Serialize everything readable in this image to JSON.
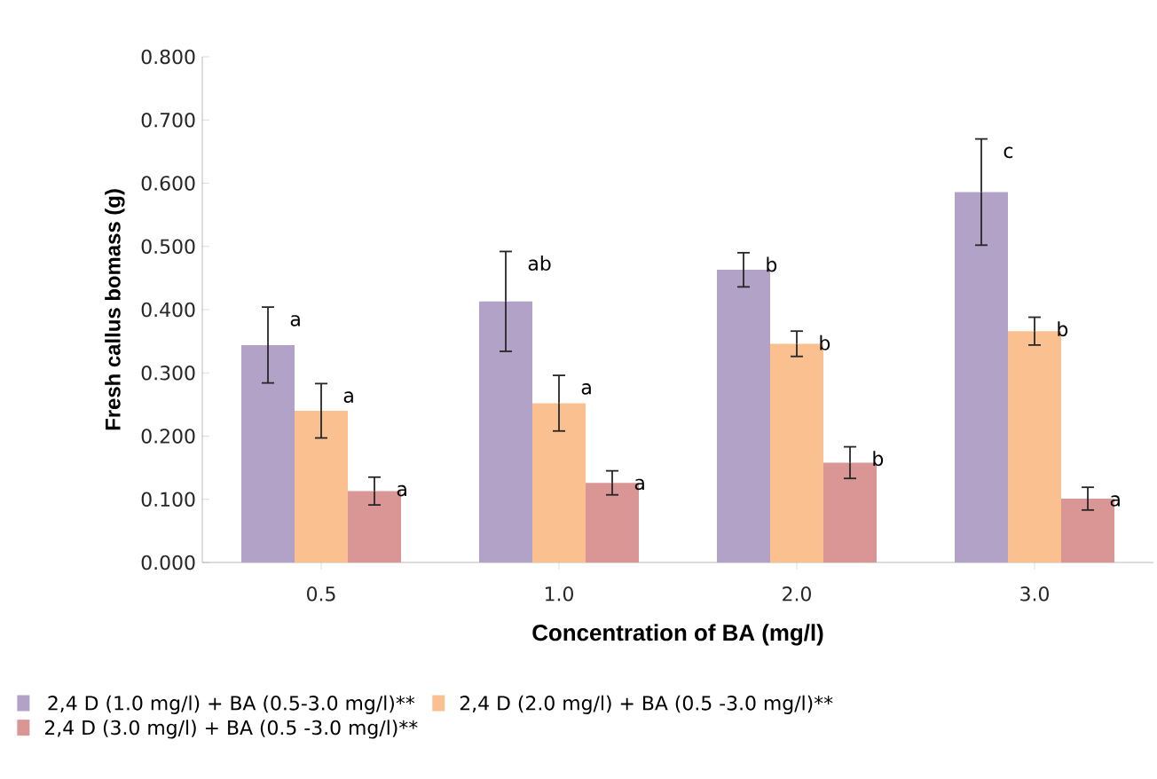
{
  "chart_data": {
    "type": "bar",
    "xlabel": "Concentration of BA (mg/l)",
    "ylabel": "Fresh callus bomass (g)",
    "categories": [
      "0.5",
      "1.0",
      "2.0",
      "3.0"
    ],
    "series": [
      {
        "name": "2,4 D (1.0 mg/l) + BA (0.5-3.0 mg/l)**",
        "color": "#b3a2c7",
        "values": [
          0.344,
          0.413,
          0.463,
          0.586
        ],
        "errors": [
          0.06,
          0.079,
          0.027,
          0.084
        ],
        "value_labels": [
          "a",
          "ab",
          "b",
          "c"
        ]
      },
      {
        "name": "2,4 D (2.0 mg/l) + BA (0.5 -3.0 mg/l)**",
        "color": "#fac090",
        "values": [
          0.24,
          0.252,
          0.346,
          0.366
        ],
        "errors": [
          0.043,
          0.044,
          0.02,
          0.022
        ],
        "value_labels": [
          "a",
          "a",
          "b",
          "b"
        ]
      },
      {
        "name": "2,4 D (3.0 mg/l) + BA (0.5 -3.0 mg/l)**",
        "color": "#d99694",
        "values": [
          0.113,
          0.126,
          0.158,
          0.101
        ],
        "errors": [
          0.022,
          0.019,
          0.025,
          0.018
        ],
        "value_labels": [
          "a",
          "a",
          "b",
          "a"
        ]
      }
    ],
    "ylim": [
      0,
      0.8
    ],
    "yticks": [
      {
        "value": 0,
        "label": "0.000"
      },
      {
        "value": 0.1,
        "label": "0.100"
      },
      {
        "value": 0.2,
        "label": "0.200"
      },
      {
        "value": 0.3,
        "label": "0.300"
      },
      {
        "value": 0.4,
        "label": "0.400"
      },
      {
        "value": 0.5,
        "label": "0.500"
      },
      {
        "value": 0.6,
        "label": "0.600"
      },
      {
        "value": 0.7,
        "label": "0.700"
      },
      {
        "value": 0.8,
        "label": "0.800"
      }
    ],
    "grid": false,
    "legend": "bottom"
  }
}
